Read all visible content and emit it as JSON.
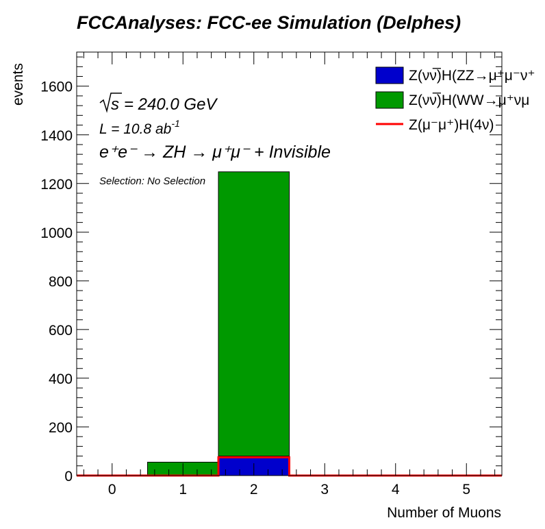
{
  "chart_data": {
    "type": "bar",
    "title": "FCCAnalyses: FCC-ee Simulation (Delphes)",
    "xlabel": "Number of Muons",
    "ylabel": "events",
    "xlim": [
      -0.5,
      5.5
    ],
    "ylim": [
      0,
      1740
    ],
    "x_ticks": [
      0,
      1,
      2,
      3,
      4,
      5
    ],
    "y_ticks": [
      0,
      200,
      400,
      600,
      800,
      1000,
      1200,
      1400,
      1600
    ],
    "categories": [
      "0",
      "1",
      "2",
      "3",
      "4",
      "5"
    ],
    "stacked": true,
    "series": [
      {
        "name": "Z(νν̅)H(ZZ→μ⁺μ⁻ν⁺",
        "kind": "stacked",
        "color": "#0000cc",
        "values": [
          0,
          0,
          80,
          0,
          0,
          0
        ]
      },
      {
        "name": "Z(νν̅)H(WW→μ⁺νμ",
        "kind": "stacked",
        "color": "#009900",
        "values": [
          0,
          55,
          1168,
          0,
          0,
          0
        ]
      },
      {
        "name": "Z(μ⁻μ⁺)H(4ν)",
        "kind": "line",
        "color": "#ff0000",
        "values": [
          0,
          0,
          75,
          0,
          0,
          0
        ]
      }
    ],
    "annotations": {
      "sqrt_s": "= 240.0 GeV",
      "lumi_prefix": "L = 10.8 ab",
      "lumi_exp": "-1",
      "process": "e⁺e⁻ → ZH → μ⁺μ⁻ + Invisible",
      "selection": "Selection: No Selection"
    },
    "legend_position": "top-right",
    "grid": false
  }
}
